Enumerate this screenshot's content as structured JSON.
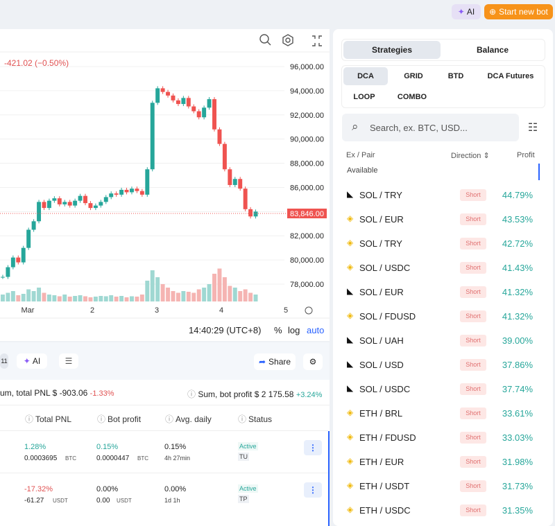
{
  "header": {
    "ai": "AI",
    "start_bot": "Start new bot"
  },
  "chart": {
    "change": "-421.02 (−0.50%)",
    "price_ticks": [
      {
        "value": 96000,
        "label": "96,000.00"
      },
      {
        "value": 94000,
        "label": "94,000.00"
      },
      {
        "value": 92000,
        "label": "92,000.00"
      },
      {
        "value": 90000,
        "label": "90,000.00"
      },
      {
        "value": 88000,
        "label": "88,000.00"
      },
      {
        "value": 86000,
        "label": "86,000.00"
      },
      {
        "value": 84000,
        "label": "84,000.00"
      },
      {
        "value": 82000,
        "label": "82,000.00"
      },
      {
        "value": 80000,
        "label": "80,000.00"
      },
      {
        "value": 78000,
        "label": "78,000.00"
      }
    ],
    "last_price": {
      "value": 83846,
      "label": "83,846.00"
    },
    "closes": [
      78600,
      79400,
      80200,
      79800,
      81000,
      82500,
      83200,
      84800,
      84300,
      84900,
      85100,
      84600,
      84800,
      84500,
      84900,
      85300,
      84700,
      84300,
      84500,
      84800,
      85200,
      85500,
      85400,
      85800,
      85600,
      85900,
      85700,
      85400,
      87500,
      93000,
      94200,
      93900,
      93600,
      93200,
      92900,
      93400,
      92700,
      92300,
      91800,
      92600,
      93300,
      90800,
      89600,
      87500,
      86200,
      86700,
      85900,
      84200,
      83600,
      84000
    ],
    "volumes": [
      20,
      25,
      30,
      18,
      22,
      35,
      30,
      40,
      25,
      20,
      18,
      15,
      20,
      14,
      16,
      18,
      15,
      12,
      14,
      16,
      15,
      18,
      14,
      16,
      12,
      15,
      14,
      20,
      60,
      90,
      70,
      50,
      40,
      30,
      25,
      30,
      28,
      25,
      35,
      40,
      50,
      80,
      95,
      70,
      45,
      40,
      30,
      35,
      25,
      20
    ],
    "x_labels": [
      "Mar",
      "2",
      "3",
      "4",
      "5"
    ],
    "time": "14:40:29 (UTC+8)",
    "controls": [
      "%",
      "log",
      "auto"
    ]
  },
  "bots": {
    "tabs": [
      "11",
      "AI"
    ],
    "share": "Share",
    "sum_pnl": {
      "label": "um, total PNL $",
      "value": "-903.06",
      "pct": "-1.33%"
    },
    "sum_profit": {
      "label": "Sum, bot profit $",
      "value": "2 175.58",
      "pct": "+3.24%"
    },
    "columns": [
      "Total PNL",
      "Bot profit",
      "Avg. daily",
      "Status"
    ],
    "rows": [
      [
        "1.28%",
        "0.0003695",
        "BTC",
        "0.15%",
        "0.0000447",
        "BTC",
        "0.15%",
        "4h 27min",
        "Active",
        "TU"
      ],
      [
        "-17.32%",
        "-61.27",
        "USDT",
        "0.00%",
        "0.00",
        "USDT",
        "0.00%",
        "1d 1h",
        "Active",
        "TP"
      ]
    ]
  },
  "panel": {
    "tabs": [
      "Strategies",
      "Balance"
    ],
    "types": [
      "DCA",
      "GRID",
      "BTD",
      "DCA Futures",
      "LOOP",
      "COMBO"
    ],
    "search": "Search, ex. BTC, USD...",
    "columns": [
      "Ex / Pair",
      "Direction",
      "Profit"
    ],
    "group": "Available",
    "rows": [
      [
        "okx",
        "SOL / TRY",
        "Short",
        "44.79%"
      ],
      [
        "bnb",
        "SOL / EUR",
        "Short",
        "43.53%"
      ],
      [
        "bnb",
        "SOL / TRY",
        "Short",
        "42.72%"
      ],
      [
        "bnb",
        "SOL / USDC",
        "Short",
        "41.43%"
      ],
      [
        "okx",
        "SOL / EUR",
        "Short",
        "41.32%"
      ],
      [
        "bnb",
        "SOL / FDUSD",
        "Short",
        "41.32%"
      ],
      [
        "okx",
        "SOL / UAH",
        "Short",
        "39.00%"
      ],
      [
        "okx",
        "SOL / USD",
        "Short",
        "37.86%"
      ],
      [
        "okx",
        "SOL / USDC",
        "Short",
        "37.74%"
      ],
      [
        "bnb",
        "ETH / BRL",
        "Short",
        "33.61%"
      ],
      [
        "bnb",
        "ETH / FDUSD",
        "Short",
        "33.03%"
      ],
      [
        "bnb",
        "ETH / EUR",
        "Short",
        "31.98%"
      ],
      [
        "bnb",
        "ETH / USDT",
        "Short",
        "31.73%"
      ],
      [
        "bnb",
        "ETH / USDC",
        "Short",
        "31.35%"
      ]
    ]
  }
}
